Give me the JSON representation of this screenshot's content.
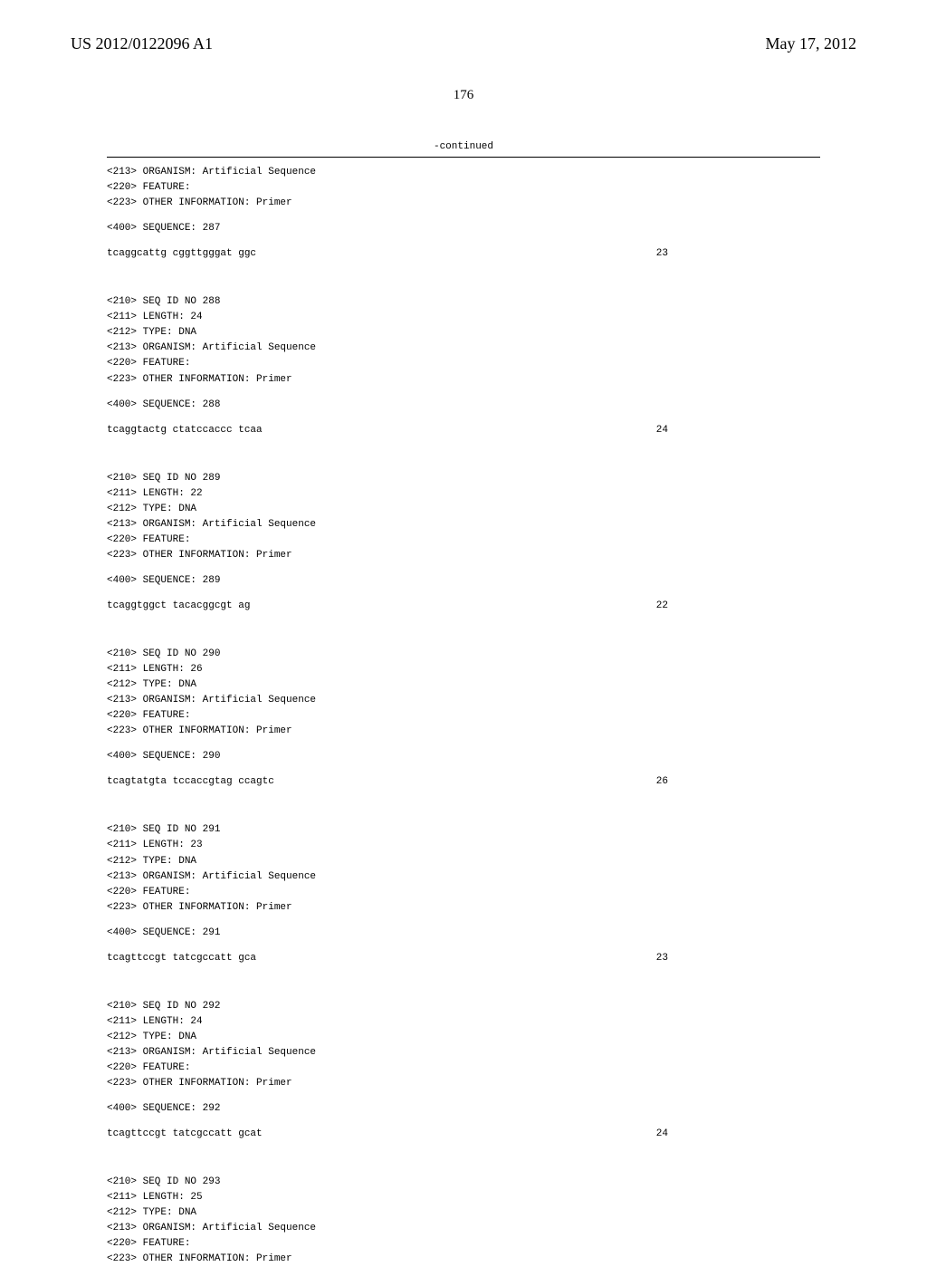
{
  "header": {
    "pub_number": "US 2012/0122096 A1",
    "pub_date": "May 17, 2012"
  },
  "page_number": "176",
  "continued_label": "-continued",
  "sequences": [
    {
      "meta_lines": [
        "<213> ORGANISM: Artificial Sequence",
        "<220> FEATURE:",
        "<223> OTHER INFORMATION: Primer"
      ],
      "seq_label": "<400> SEQUENCE: 287",
      "seq_text": "tcaggcattg cggttgggat ggc",
      "seq_length": "23"
    },
    {
      "meta_lines": [
        "<210> SEQ ID NO 288",
        "<211> LENGTH: 24",
        "<212> TYPE: DNA",
        "<213> ORGANISM: Artificial Sequence",
        "<220> FEATURE:",
        "<223> OTHER INFORMATION: Primer"
      ],
      "seq_label": "<400> SEQUENCE: 288",
      "seq_text": "tcaggtactg ctatccaccc tcaa",
      "seq_length": "24"
    },
    {
      "meta_lines": [
        "<210> SEQ ID NO 289",
        "<211> LENGTH: 22",
        "<212> TYPE: DNA",
        "<213> ORGANISM: Artificial Sequence",
        "<220> FEATURE:",
        "<223> OTHER INFORMATION: Primer"
      ],
      "seq_label": "<400> SEQUENCE: 289",
      "seq_text": "tcaggtggct tacacggcgt ag",
      "seq_length": "22"
    },
    {
      "meta_lines": [
        "<210> SEQ ID NO 290",
        "<211> LENGTH: 26",
        "<212> TYPE: DNA",
        "<213> ORGANISM: Artificial Sequence",
        "<220> FEATURE:",
        "<223> OTHER INFORMATION: Primer"
      ],
      "seq_label": "<400> SEQUENCE: 290",
      "seq_text": "tcagtatgta tccaccgtag ccagtc",
      "seq_length": "26"
    },
    {
      "meta_lines": [
        "<210> SEQ ID NO 291",
        "<211> LENGTH: 23",
        "<212> TYPE: DNA",
        "<213> ORGANISM: Artificial Sequence",
        "<220> FEATURE:",
        "<223> OTHER INFORMATION: Primer"
      ],
      "seq_label": "<400> SEQUENCE: 291",
      "seq_text": "tcagttccgt tatcgccatt gca",
      "seq_length": "23"
    },
    {
      "meta_lines": [
        "<210> SEQ ID NO 292",
        "<211> LENGTH: 24",
        "<212> TYPE: DNA",
        "<213> ORGANISM: Artificial Sequence",
        "<220> FEATURE:",
        "<223> OTHER INFORMATION: Primer"
      ],
      "seq_label": "<400> SEQUENCE: 292",
      "seq_text": "tcagttccgt tatcgccatt gcat",
      "seq_length": "24"
    },
    {
      "meta_lines": [
        "<210> SEQ ID NO 293",
        "<211> LENGTH: 25",
        "<212> TYPE: DNA",
        "<213> ORGANISM: Artificial Sequence",
        "<220> FEATURE:",
        "<223> OTHER INFORMATION: Primer"
      ],
      "seq_label": "",
      "seq_text": "",
      "seq_length": ""
    }
  ]
}
